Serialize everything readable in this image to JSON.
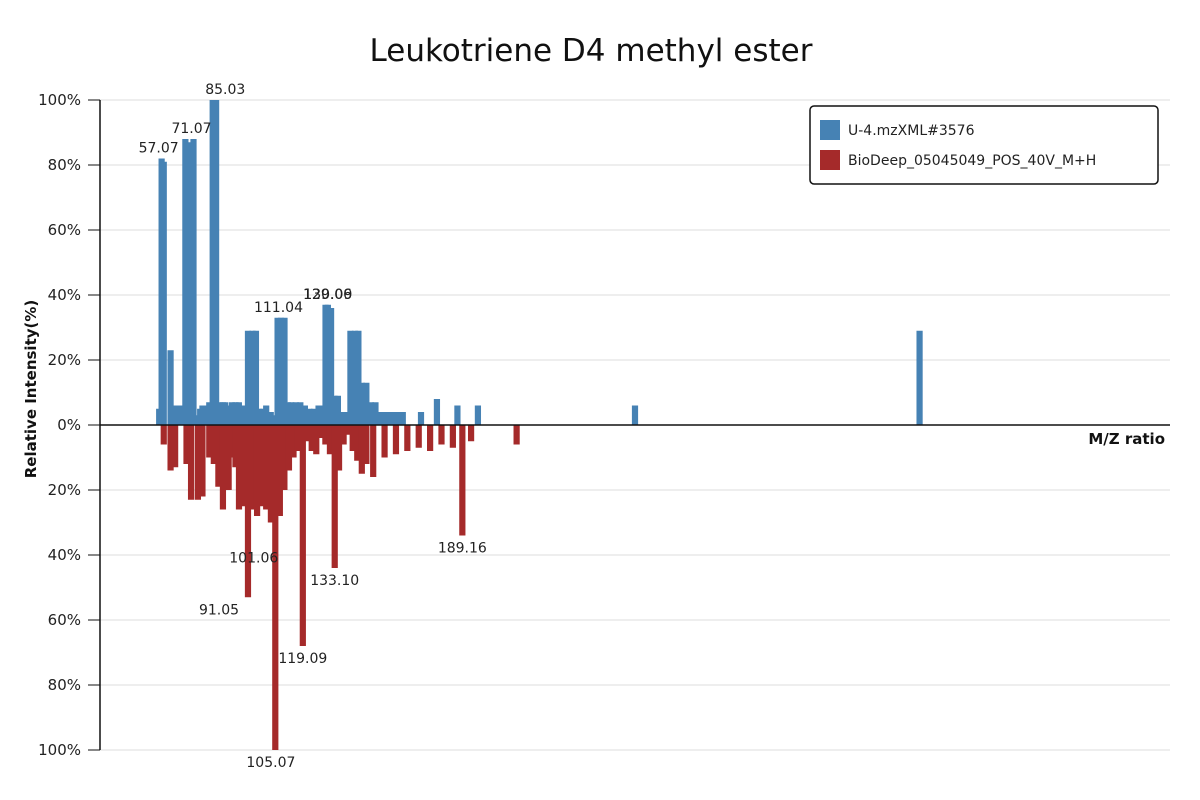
{
  "chart_data": {
    "type": "bar",
    "title": "Leukotriene D4 methyl ester",
    "xlabel": "M/Z ratio",
    "ylabel": "Relative Intensity(%)",
    "ylim": [
      -100,
      100
    ],
    "yticks": [
      100,
      80,
      60,
      40,
      20,
      0,
      -20,
      -40,
      -60,
      -80,
      -100
    ],
    "ytick_labels": [
      "100%",
      "80%",
      "60%",
      "40%",
      "20%",
      "0%",
      "20%",
      "40%",
      "60%",
      "80%",
      "100%"
    ],
    "xlim": [
      30,
      500
    ],
    "grid": true,
    "legend_position": "top-right",
    "colors": {
      "top": "#4682b4",
      "bottom": "#a52a2a"
    },
    "series": [
      {
        "name": "U-4.mzXML#3576",
        "direction": "up",
        "x": [
          56.0,
          57.07,
          58.0,
          61.0,
          63.0,
          64.5,
          66.0,
          67.5,
          69.0,
          71.07,
          72.5,
          74.0,
          75.0,
          76.5,
          78.0,
          79.5,
          81.0,
          82.5,
          84.0,
          85.03,
          86.5,
          88.0,
          89.5,
          91.0,
          93.0,
          95.0,
          97.0,
          98.5,
          100.0,
          101.5,
          103.0,
          105.0,
          106.5,
          108.0,
          109.5,
          111.04,
          112.5,
          114.0,
          116.0,
          118.0,
          120.0,
          122.0,
          124.0,
          126.0,
          128.0,
          129.06,
          130.09,
          131.5,
          133.0,
          134.5,
          136.0,
          138.0,
          140.0,
          142.0,
          143.5,
          145.0,
          147.0,
          149.0,
          151.0,
          153.0,
          155.0,
          157.0,
          159.0,
          161.0,
          163.0,
          171.0,
          178.0,
          187.0,
          196.0,
          265.0,
          390.0
        ],
        "y": [
          5,
          82,
          81,
          23,
          6,
          6,
          6,
          88,
          87,
          88,
          3,
          5,
          6,
          6,
          7,
          100,
          100,
          7,
          7,
          7,
          6,
          7,
          7,
          7,
          6,
          29,
          29,
          29,
          5,
          5,
          6,
          4,
          3,
          33,
          33,
          33,
          7,
          7,
          7,
          7,
          6,
          5,
          5,
          6,
          6,
          37,
          37,
          36,
          9,
          9,
          4,
          4,
          29,
          29,
          29,
          13,
          13,
          7,
          7,
          4,
          4,
          4,
          4,
          4,
          4,
          4,
          8,
          6,
          6,
          6,
          29
        ]
      },
      {
        "name": "BioDeep_05045049_POS_40V_M+H",
        "direction": "down",
        "x": [
          58.0,
          61.0,
          63.0,
          68.0,
          70.0,
          73.0,
          75.0,
          78.0,
          80.0,
          82.0,
          84.0,
          86.5,
          88.0,
          89.5,
          91.05,
          93.0,
          95.0,
          97.0,
          99.0,
          101.06,
          103.0,
          105.07,
          107.0,
          109.0,
          111.0,
          113.0,
          115.0,
          117.0,
          119.09,
          121.0,
          123.0,
          125.0,
          127.0,
          129.0,
          131.0,
          133.1,
          135.0,
          137.0,
          139.0,
          141.0,
          143.0,
          145.0,
          147.0,
          150.0,
          155.0,
          160.0,
          165.0,
          170.0,
          175.0,
          180.0,
          185.0,
          189.16,
          193.0,
          213.0
        ],
        "y": [
          6,
          14,
          13,
          12,
          23,
          23,
          22,
          10,
          12,
          19,
          26,
          20,
          10,
          13,
          26,
          25,
          53,
          26,
          28,
          25,
          26,
          30,
          100,
          28,
          20,
          14,
          10,
          8,
          68,
          5,
          8,
          9,
          4,
          6,
          9,
          44,
          14,
          6,
          3,
          8,
          11,
          15,
          12,
          16,
          10,
          9,
          8,
          7,
          8,
          6,
          7,
          34,
          5,
          6
        ]
      }
    ],
    "peak_labels": [
      {
        "series": 0,
        "x": 57.07,
        "y": 82,
        "text": "57.07"
      },
      {
        "series": 0,
        "x": 71.07,
        "y": 88,
        "text": "71.07"
      },
      {
        "series": 0,
        "x": 85.03,
        "y": 100,
        "text": "85.03"
      },
      {
        "series": 0,
        "x": 111.04,
        "y": 33,
        "text": "111.04"
      },
      {
        "series": 0,
        "x": 129.06,
        "y": 37,
        "text": "129.06"
      },
      {
        "series": 0,
        "x": 130.09,
        "y": 37,
        "text": "130.09"
      },
      {
        "series": 1,
        "x": 91.05,
        "y": 53,
        "text": "91.05"
      },
      {
        "series": 1,
        "x": 101.06,
        "y": 37,
        "text": "101.06"
      },
      {
        "series": 1,
        "x": 105.07,
        "y": 100,
        "text": "105.07"
      },
      {
        "series": 1,
        "x": 119.09,
        "y": 68,
        "text": "119.09"
      },
      {
        "series": 1,
        "x": 133.1,
        "y": 44,
        "text": "133.10"
      },
      {
        "series": 1,
        "x": 189.16,
        "y": 34,
        "text": "189.16"
      }
    ]
  }
}
